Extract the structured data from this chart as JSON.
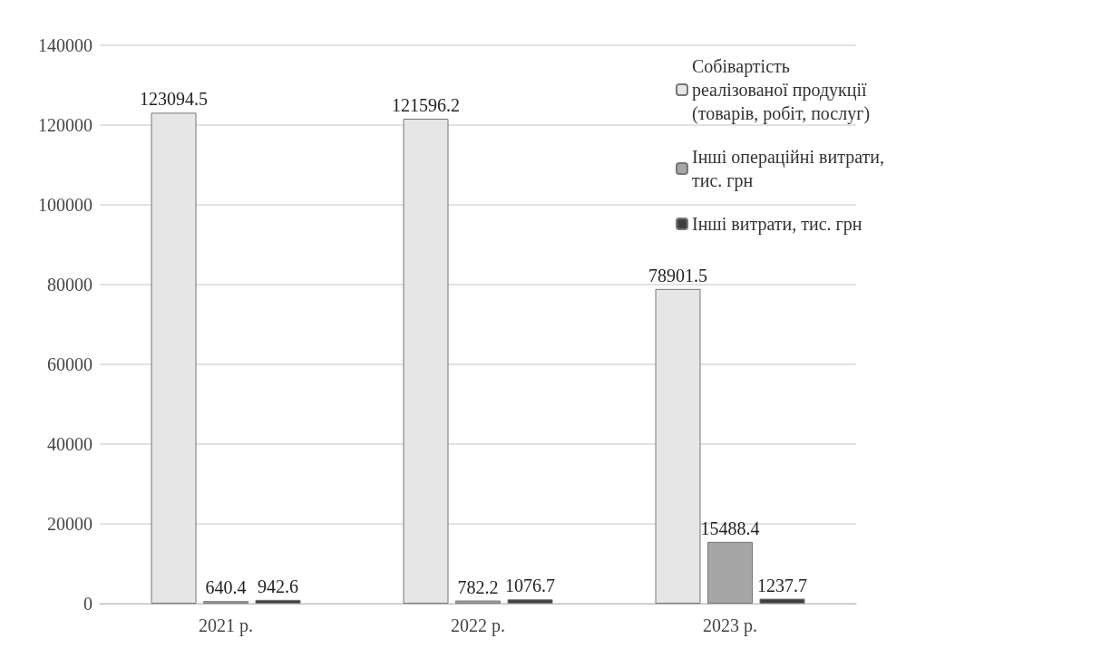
{
  "chart_data": {
    "type": "bar",
    "categories": [
      "2021 р.",
      "2022 р.",
      "2023 р."
    ],
    "series": [
      {
        "name": "Собівартість реалізованої продукції (товарів, робіт, послуг)",
        "color": "#e6e6e6",
        "values": [
          123094.5,
          121596.2,
          78901.5
        ]
      },
      {
        "name": "Інші операційні витрати, тис. грн",
        "color": "#a6a6a6",
        "values": [
          640.4,
          782.2,
          15488.4
        ]
      },
      {
        "name": "Інші витрати, тис. грн",
        "color": "#404040",
        "values": [
          942.6,
          1076.7,
          1237.7
        ]
      }
    ],
    "ylim": [
      0,
      140000
    ],
    "yticks": [
      0,
      20000,
      40000,
      60000,
      80000,
      100000,
      120000,
      140000
    ],
    "grid": "y",
    "legend": "top right",
    "data_labels": true
  }
}
